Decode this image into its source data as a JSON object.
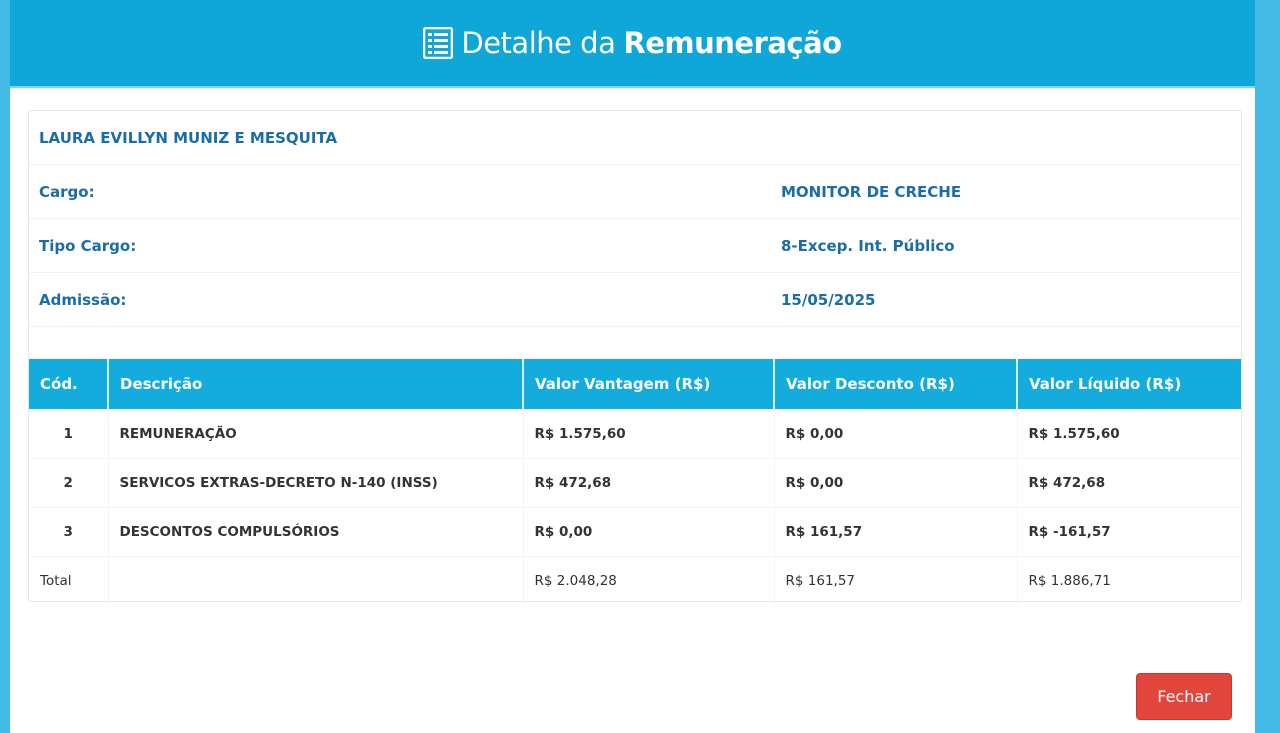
{
  "header": {
    "title_light": "Detalhe da",
    "title_bold": "Remuneração",
    "icon": "list-alt-icon"
  },
  "employee": {
    "name": "LAURA EVILLYN MUNIZ E MESQUITA",
    "fields": [
      {
        "label": "Cargo:",
        "value": "MONITOR DE CRECHE"
      },
      {
        "label": "Tipo Cargo:",
        "value": "8-Excep. Int. Público"
      },
      {
        "label": "Admissão:",
        "value": "15/05/2025"
      }
    ]
  },
  "table": {
    "headers": [
      "Cód.",
      "Descrição",
      "Valor Vantagem (R$)",
      "Valor Desconto (R$)",
      "Valor Líquido (R$)"
    ],
    "rows": [
      [
        "1",
        "REMUNERAÇÃO",
        "R$ 1.575,60",
        "R$ 0,00",
        "R$ 1.575,60"
      ],
      [
        "2",
        "SERVICOS EXTRAS-DECRETO N-140 (INSS)",
        "R$ 472,68",
        "R$ 0,00",
        "R$ 472,68"
      ],
      [
        "3",
        "DESCONTOS COMPULSÓRIOS",
        "R$ 0,00",
        "R$ 161,57",
        "R$ -161,57"
      ]
    ],
    "total": {
      "label": "Total",
      "vantagem": "R$ 2.048,28",
      "desconto": "R$ 161,57",
      "liquido": "R$ 1.886,71"
    }
  },
  "buttons": {
    "close": "Fechar"
  },
  "colors": {
    "header": "#0fa6d8",
    "text_blue": "#1a6da6",
    "close_button": "#e2453c"
  }
}
